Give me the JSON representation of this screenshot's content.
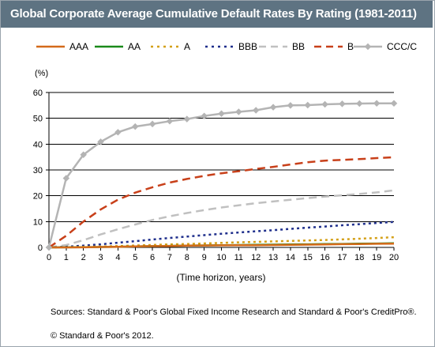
{
  "header": {
    "title": "Global Corporate Average Cumulative Default Rates By Rating (1981-2011)"
  },
  "chart_data": {
    "type": "line",
    "title": "Global Corporate Average Cumulative Default Rates By Rating (1981-2011)",
    "unit_label": "(%)",
    "xlabel": "(Time horizon, years)",
    "ylabel": "",
    "x": [
      0,
      1,
      2,
      3,
      4,
      5,
      6,
      7,
      8,
      9,
      10,
      11,
      12,
      13,
      14,
      15,
      16,
      17,
      18,
      19,
      20
    ],
    "xlim": [
      0,
      20
    ],
    "ylim": [
      0,
      60
    ],
    "yticks": [
      0,
      10,
      20,
      30,
      40,
      50,
      60
    ],
    "grid": "horizontal",
    "legend_position": "top",
    "series": [
      {
        "name": "AAA",
        "color": "#d46a1a",
        "style": "solid",
        "values": [
          0,
          0.0,
          0.03,
          0.14,
          0.26,
          0.38,
          0.5,
          0.56,
          0.66,
          0.72,
          0.79,
          0.83,
          0.87,
          0.91,
          0.99,
          1.08,
          1.17,
          1.24,
          1.33,
          1.41,
          1.48
        ]
      },
      {
        "name": "AA",
        "color": "#1a8a1a",
        "style": "solid",
        "values": [
          0,
          0.02,
          0.07,
          0.14,
          0.26,
          0.37,
          0.49,
          0.58,
          0.67,
          0.76,
          0.85,
          0.93,
          1.0,
          1.07,
          1.13,
          1.2,
          1.28,
          1.35,
          1.43,
          1.51,
          1.59
        ]
      },
      {
        "name": "A",
        "color": "#d4a017",
        "style": "dotted",
        "values": [
          0,
          0.08,
          0.2,
          0.35,
          0.53,
          0.72,
          0.95,
          1.15,
          1.33,
          1.54,
          1.75,
          1.95,
          2.15,
          2.33,
          2.51,
          2.7,
          2.89,
          3.1,
          3.37,
          3.65,
          3.94
        ]
      },
      {
        "name": "BBB",
        "color": "#1f2f8c",
        "style": "dotted",
        "values": [
          0,
          0.25,
          0.71,
          1.2,
          1.82,
          2.42,
          3.05,
          3.64,
          4.2,
          4.74,
          5.3,
          5.8,
          6.24,
          6.68,
          7.17,
          7.65,
          8.09,
          8.56,
          9.0,
          9.46,
          9.85
        ]
      },
      {
        "name": "BB",
        "color": "#c0c0c0",
        "style": "dashed",
        "values": [
          0,
          0.92,
          2.83,
          5.01,
          7.04,
          8.89,
          10.62,
          12.07,
          13.33,
          14.45,
          15.47,
          16.33,
          17.11,
          17.79,
          18.47,
          19.11,
          19.65,
          20.16,
          20.7,
          21.3,
          22.1
        ]
      },
      {
        "name": "B",
        "color": "#c8401a",
        "style": "dashed",
        "values": [
          0,
          4.5,
          10.0,
          14.7,
          18.5,
          21.2,
          23.3,
          25.1,
          26.5,
          27.7,
          28.7,
          29.5,
          30.4,
          31.2,
          32.1,
          33.0,
          33.6,
          33.9,
          34.2,
          34.6,
          34.9
        ]
      },
      {
        "name": "CCC/C",
        "color": "#b4b4b4",
        "style": "solid-marker",
        "values": [
          0,
          26.8,
          35.9,
          40.9,
          44.6,
          46.8,
          47.8,
          48.9,
          49.7,
          50.9,
          51.8,
          52.5,
          53.1,
          54.3,
          55.0,
          55.1,
          55.4,
          55.6,
          55.7,
          55.8,
          55.8
        ]
      }
    ]
  },
  "footer": {
    "sources": "Sources: Standard & Poor's Global Fixed Income Research and Standard & Poor's CreditPro®.",
    "copyright": "© Standard & Poor's 2012."
  }
}
